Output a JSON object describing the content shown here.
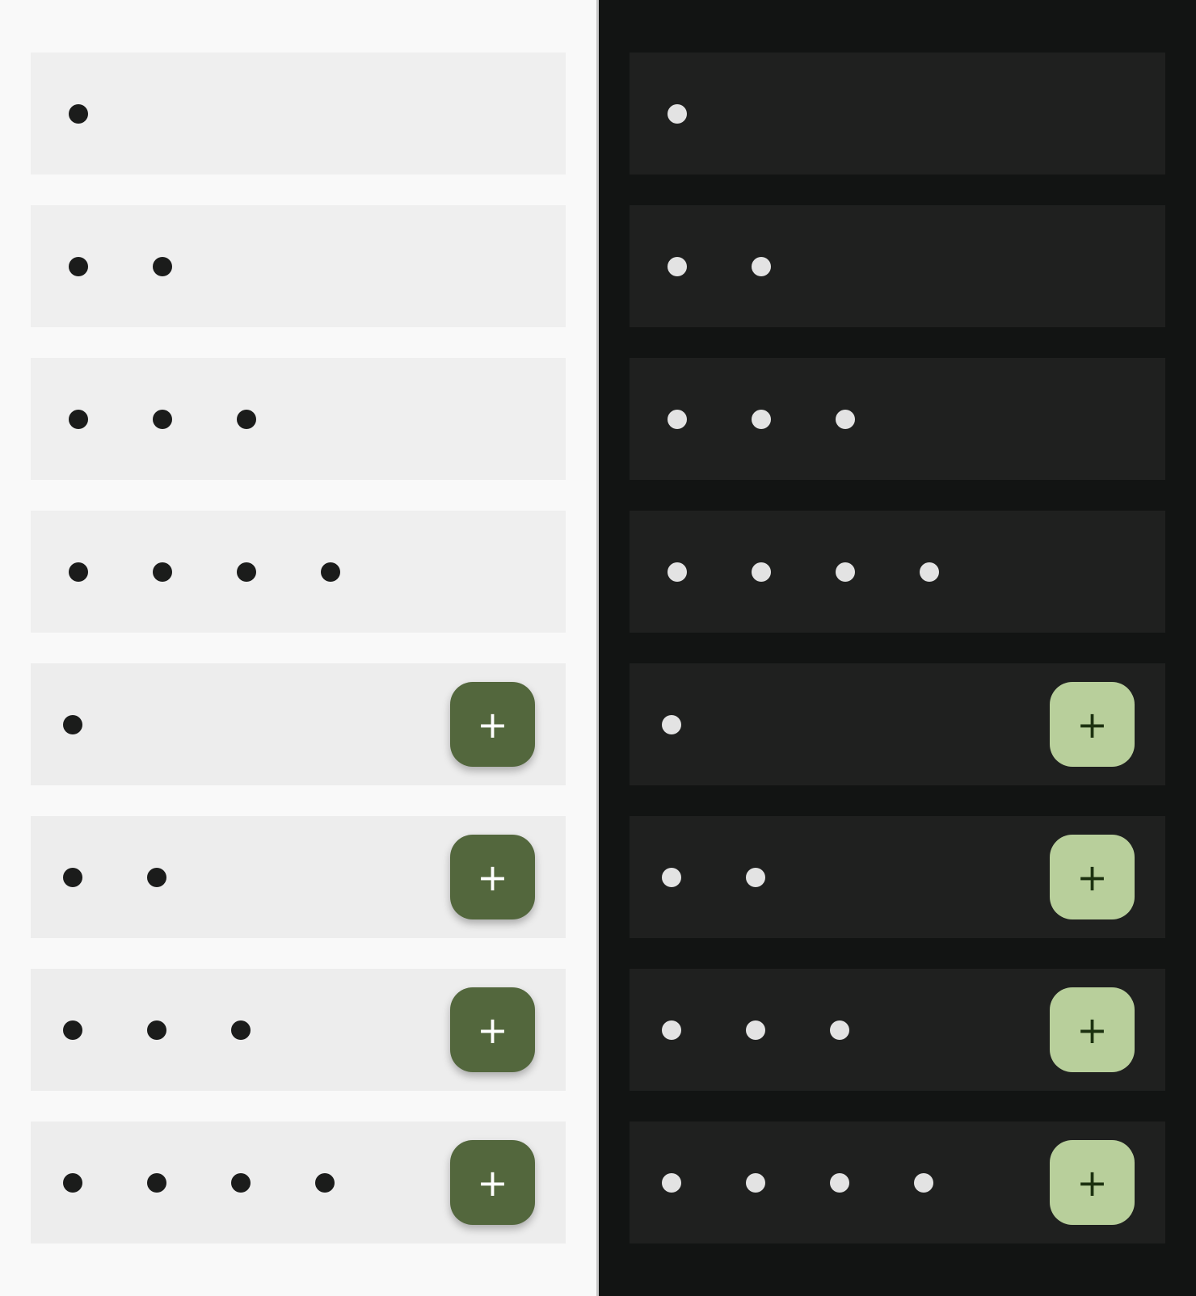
{
  "themes": {
    "light": {
      "background": "#f9f9f9",
      "bar": "#efefef",
      "dot": "#1b1c1b",
      "fab_bg": "#53673d",
      "fab_icon": "#ffffff"
    },
    "dark": {
      "background": "#121413",
      "bar": "#1f201f",
      "dot": "#e3e3e3",
      "fab_bg": "#b8cf9b",
      "fab_icon": "#1c3110"
    }
  },
  "bars": [
    {
      "action_count": 1,
      "has_fab": false
    },
    {
      "action_count": 2,
      "has_fab": false
    },
    {
      "action_count": 3,
      "has_fab": false
    },
    {
      "action_count": 4,
      "has_fab": false
    },
    {
      "action_count": 1,
      "has_fab": true
    },
    {
      "action_count": 2,
      "has_fab": true
    },
    {
      "action_count": 3,
      "has_fab": true
    },
    {
      "action_count": 4,
      "has_fab": true
    }
  ],
  "icons": {
    "action": "dot-icon",
    "fab": "plus-icon"
  },
  "fab_glyph": "+"
}
